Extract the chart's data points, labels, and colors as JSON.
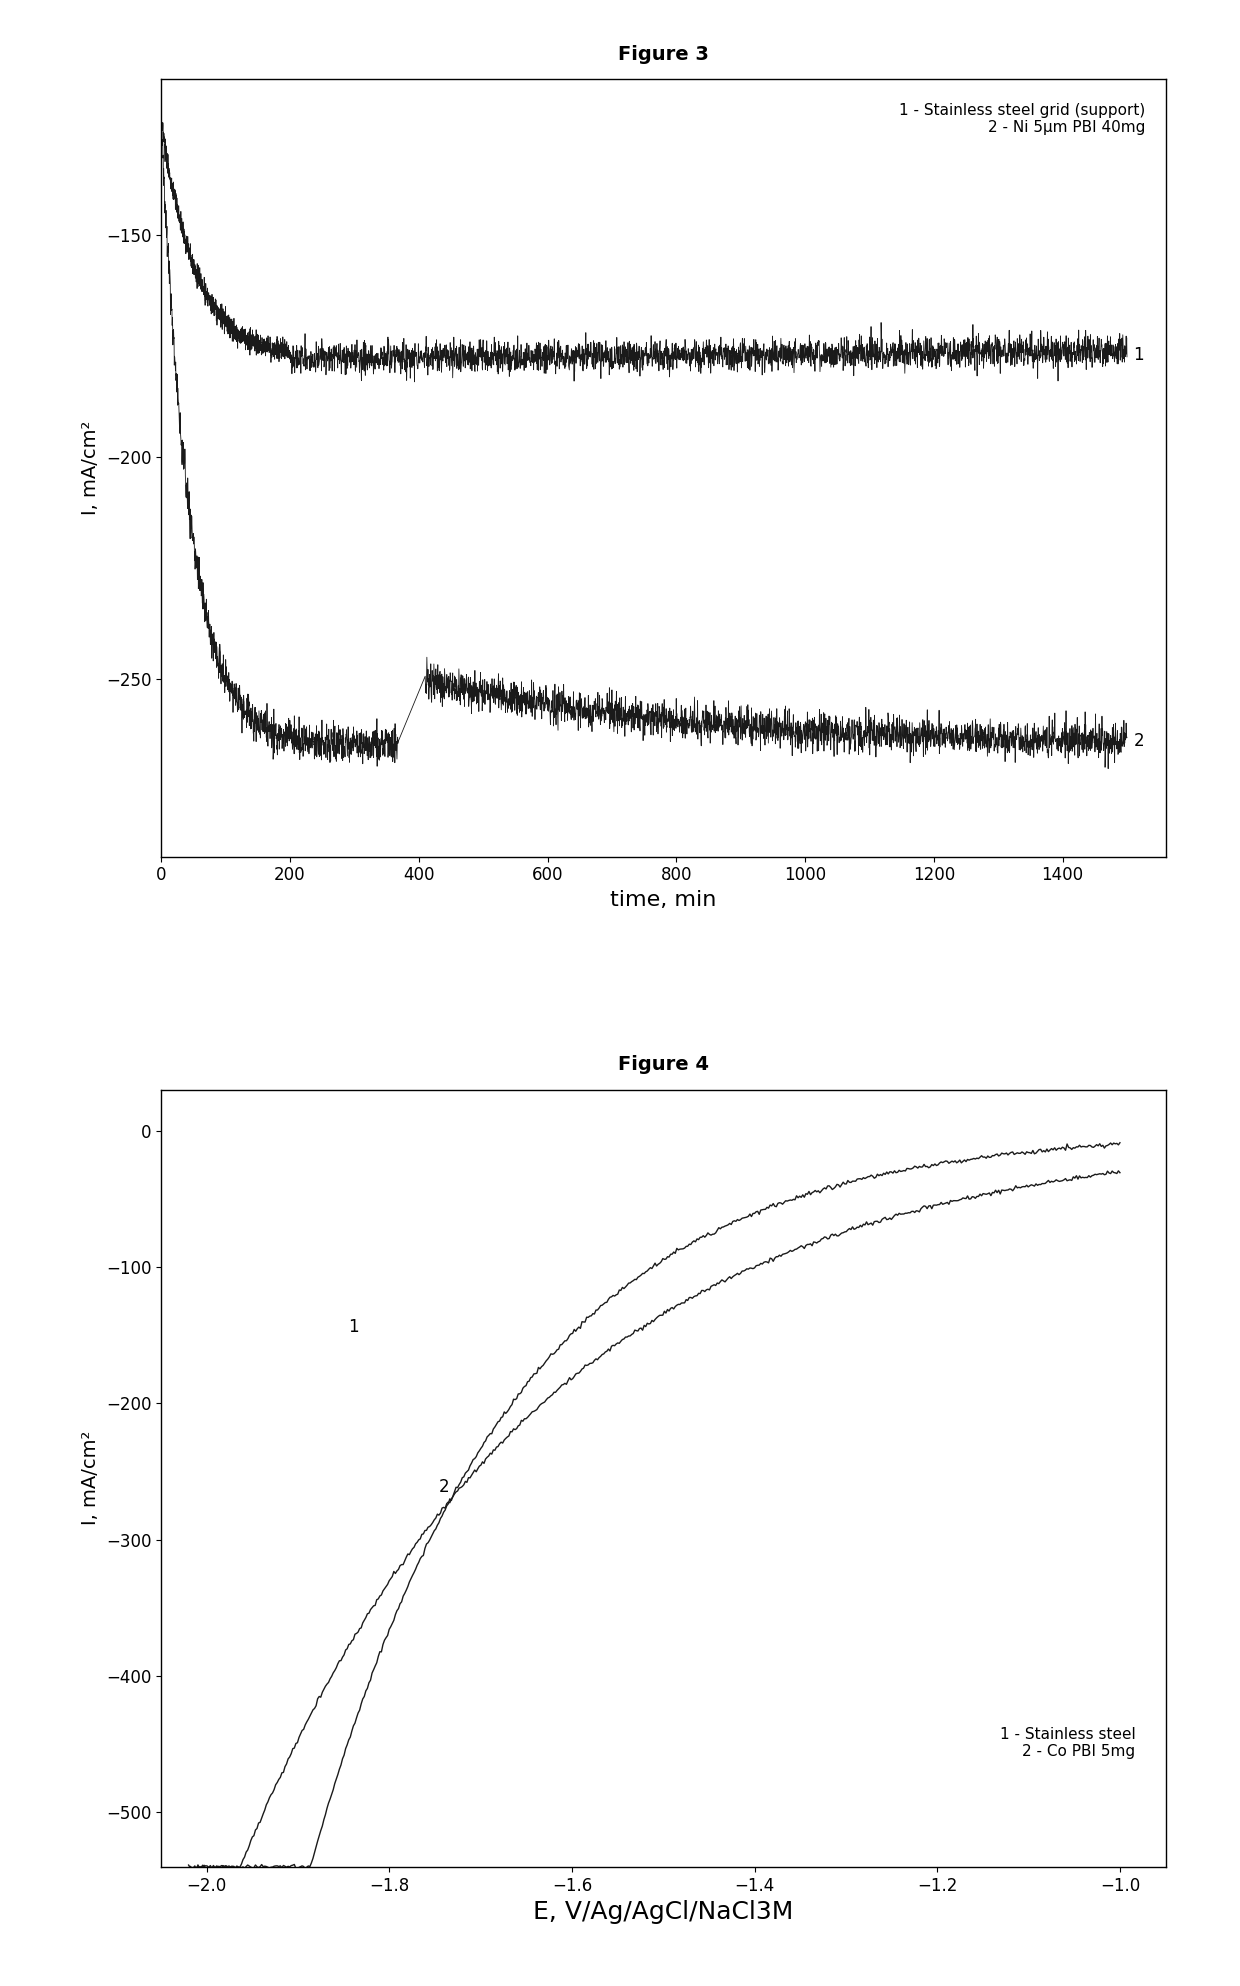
{
  "fig3_title": "Figure 3",
  "fig3_xlabel": "time, min",
  "fig3_ylabel": "I, mA/cm²",
  "fig3_xlim": [
    0,
    1560
  ],
  "fig3_ylim": [
    -290,
    -115
  ],
  "fig3_xticks": [
    0,
    200,
    400,
    600,
    800,
    1000,
    1200,
    1400
  ],
  "fig3_yticks": [
    -250,
    -200,
    -150
  ],
  "fig3_legend_line1": "1 - Stainless steel grid (support)",
  "fig3_legend_line2": "2 - Ni 5μm PBI 40mg",
  "fig3_label1": "1",
  "fig3_label2": "2",
  "fig4_title": "Figure 4",
  "fig4_xlabel": "E, V/Ag/AgCl/NaCl3M",
  "fig4_ylabel": "I, mA/cm²",
  "fig4_xlim": [
    -2.05,
    -0.95
  ],
  "fig4_ylim": [
    -540,
    30
  ],
  "fig4_xticks": [
    -2.0,
    -1.8,
    -1.6,
    -1.4,
    -1.2,
    -1.0
  ],
  "fig4_yticks": [
    0,
    -100,
    -200,
    -300,
    -400,
    -500
  ],
  "fig4_legend_line1": "1 - Stainless steel",
  "fig4_legend_line2": "2 - Co PBI 5mg",
  "fig4_label1": "1",
  "fig4_label2": "2",
  "line_color": "#1a1a1a",
  "background_color": "#ffffff",
  "title_fontsize": 14,
  "axis_label_fontsize": 14,
  "tick_fontsize": 12,
  "legend_fontsize": 11
}
